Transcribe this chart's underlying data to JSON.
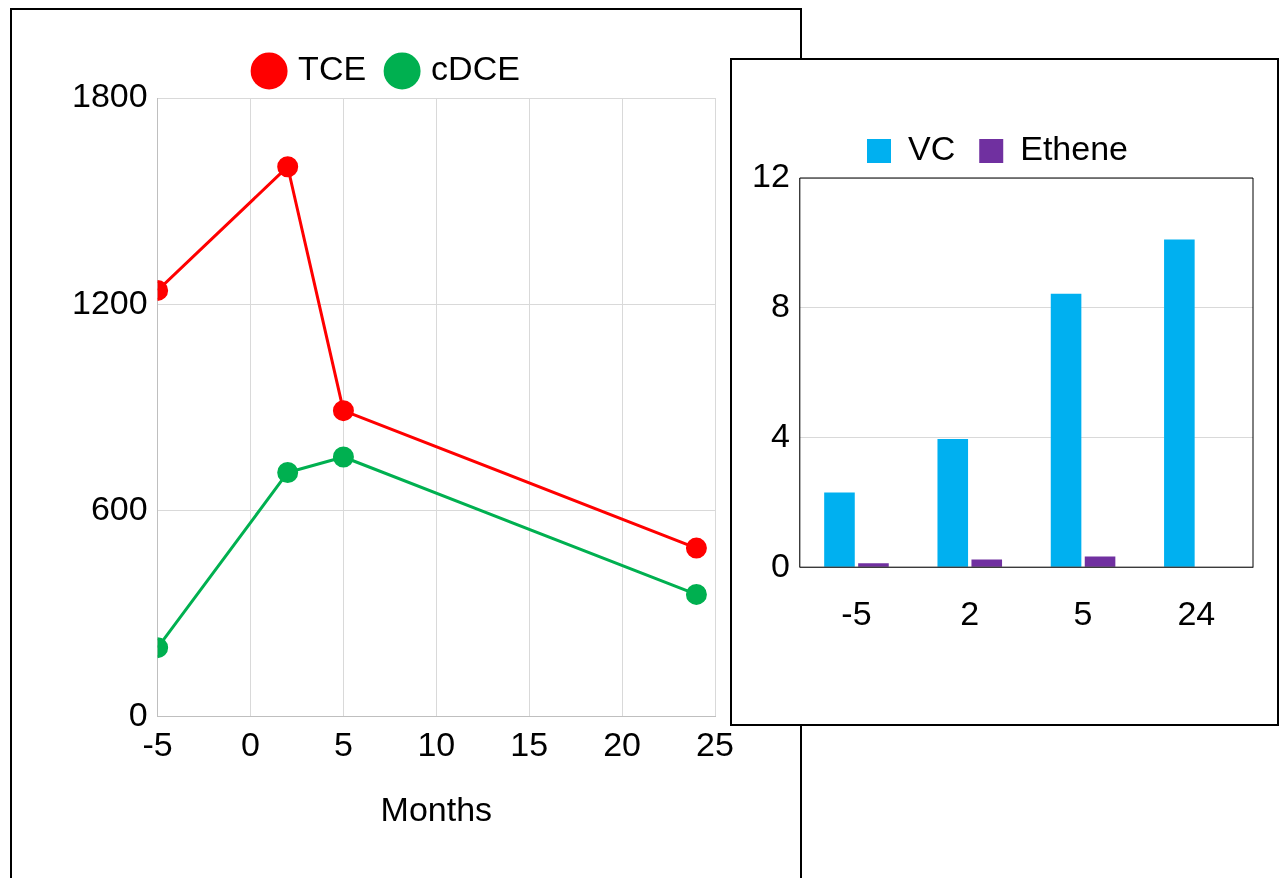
{
  "chart_data": [
    {
      "type": "line",
      "xlabel": "Months",
      "x": [
        -5,
        2,
        5,
        24
      ],
      "xlim": [
        -5,
        25
      ],
      "xticks": [
        -5,
        0,
        5,
        10,
        15,
        20,
        25
      ],
      "ylim": [
        0,
        1800
      ],
      "yticks": [
        0,
        600,
        1200,
        1800
      ],
      "grid": true,
      "legend": "top",
      "marker": "circle",
      "series": [
        {
          "name": "TCE",
          "color": "#ff0000",
          "values": [
            1240,
            1600,
            890,
            490
          ]
        },
        {
          "name": "cDCE",
          "color": "#00b050",
          "values": [
            200,
            710,
            755,
            355
          ]
        }
      ]
    },
    {
      "type": "bar",
      "categories": [
        "-5",
        "2",
        "5",
        "24"
      ],
      "ylim": [
        0,
        12
      ],
      "yticks": [
        0,
        4,
        8,
        12
      ],
      "grid": "y",
      "legend": "top",
      "series": [
        {
          "name": "VC",
          "color": "#00b0f0",
          "values": [
            2.3,
            3.95,
            8.43,
            10.1
          ]
        },
        {
          "name": "Ethene",
          "color": "#7030a0",
          "values": [
            0.12,
            0.24,
            0.33,
            null
          ]
        }
      ]
    }
  ]
}
